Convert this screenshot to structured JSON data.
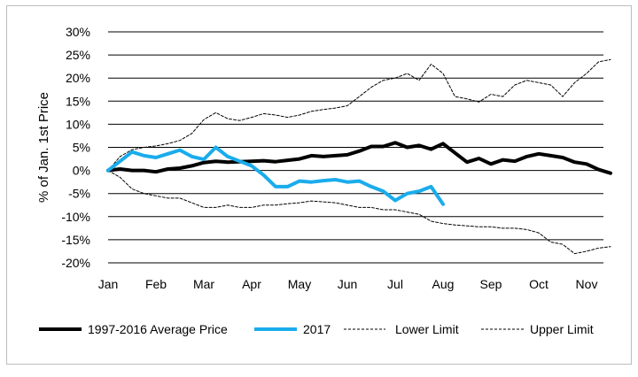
{
  "chart_data": {
    "type": "line",
    "ylabel": "% of Jan. 1st Price",
    "xlabel": "",
    "ylim": [
      -20,
      30
    ],
    "ytick_step": 5,
    "ytick_labels": [
      "30%",
      "25%",
      "20%",
      "15%",
      "10%",
      "5%",
      "0%",
      "-5%",
      "-10%",
      "-15%",
      "-20%"
    ],
    "xlim": [
      0,
      10.5
    ],
    "month_labels": [
      "Jan",
      "Feb",
      "Mar",
      "Apr",
      "May",
      "Jun",
      "Jul",
      "Aug",
      "Sep",
      "Oct",
      "Nov"
    ],
    "grid": "horizontal",
    "legend_position": "bottom",
    "series": [
      {
        "name": "1997-2016 Average Price",
        "color": "#000000",
        "style": "thick",
        "x": [
          0,
          0.25,
          0.5,
          0.75,
          1.0,
          1.25,
          1.5,
          1.75,
          2.0,
          2.25,
          2.5,
          2.75,
          3.0,
          3.25,
          3.5,
          3.75,
          4.0,
          4.25,
          4.5,
          4.75,
          5.0,
          5.25,
          5.5,
          5.75,
          6.0,
          6.25,
          6.5,
          6.75,
          7.0,
          7.25,
          7.5,
          7.75,
          8.0,
          8.25,
          8.5,
          8.75,
          9.0,
          9.25,
          9.5,
          9.75,
          10.0,
          10.25,
          10.5
        ],
        "y": [
          0,
          0.3,
          0,
          0,
          -0.3,
          0.3,
          0.5,
          1.0,
          1.7,
          2.0,
          1.8,
          1.9,
          2.0,
          2.1,
          1.9,
          2.2,
          2.5,
          3.2,
          3.0,
          3.2,
          3.4,
          4.2,
          5.2,
          5.2,
          6.0,
          5.0,
          5.4,
          4.6,
          5.8,
          3.8,
          1.8,
          2.6,
          1.4,
          2.3,
          2.0,
          3.0,
          3.6,
          3.2,
          2.8,
          1.8,
          1.4,
          0.2,
          -0.6
        ]
      },
      {
        "name": "2017",
        "color": "#1aacec",
        "style": "thick",
        "x": [
          0,
          0.25,
          0.5,
          0.75,
          1.0,
          1.25,
          1.5,
          1.75,
          2.0,
          2.25,
          2.5,
          2.75,
          3.0,
          3.25,
          3.5,
          3.75,
          4.0,
          4.25,
          4.5,
          4.75,
          5.0,
          5.25,
          5.5,
          5.75,
          6.0,
          6.25,
          6.5,
          6.75,
          7.0
        ],
        "y": [
          0,
          2,
          4,
          3.2,
          2.8,
          3.6,
          4.4,
          3.0,
          2.4,
          5.0,
          3.0,
          2.0,
          1.0,
          -1.0,
          -3.5,
          -3.5,
          -2.3,
          -2.5,
          -2.2,
          -2.0,
          -2.5,
          -2.3,
          -3.5,
          -4.5,
          -6.5,
          -5.0,
          -4.5,
          -3.5,
          -7.3
        ]
      },
      {
        "name": "Lower Limit",
        "color": "#000000",
        "style": "dashed",
        "x": [
          0,
          0.25,
          0.5,
          0.75,
          1.0,
          1.25,
          1.5,
          1.75,
          2.0,
          2.25,
          2.5,
          2.75,
          3.0,
          3.25,
          3.5,
          3.75,
          4.0,
          4.25,
          4.5,
          4.75,
          5.0,
          5.25,
          5.5,
          5.75,
          6.0,
          6.25,
          6.5,
          6.75,
          7.0,
          7.25,
          7.5,
          7.75,
          8.0,
          8.25,
          8.5,
          8.75,
          9.0,
          9.25,
          9.5,
          9.75,
          10.0,
          10.25,
          10.5
        ],
        "y": [
          0,
          -1.5,
          -4,
          -5,
          -5.5,
          -6,
          -6,
          -7,
          -8,
          -8,
          -7.5,
          -8,
          -8,
          -7.5,
          -7.5,
          -7.2,
          -7.0,
          -6.6,
          -6.8,
          -7.0,
          -7.5,
          -8.0,
          -8.0,
          -8.5,
          -8.5,
          -9.0,
          -9.5,
          -11.0,
          -11.5,
          -11.8,
          -12.0,
          -12.2,
          -12.2,
          -12.5,
          -12.5,
          -12.8,
          -13.5,
          -15.5,
          -16.0,
          -18.0,
          -17.5,
          -16.8,
          -16.5
        ]
      },
      {
        "name": "Upper Limit",
        "color": "#000000",
        "style": "dashed",
        "x": [
          0,
          0.25,
          0.5,
          0.75,
          1.0,
          1.25,
          1.5,
          1.75,
          2.0,
          2.25,
          2.5,
          2.75,
          3.0,
          3.25,
          3.5,
          3.75,
          4.0,
          4.25,
          4.5,
          4.75,
          5.0,
          5.25,
          5.5,
          5.75,
          6.0,
          6.25,
          6.5,
          6.75,
          7.0,
          7.25,
          7.5,
          7.75,
          8.0,
          8.25,
          8.5,
          8.75,
          9.0,
          9.25,
          9.5,
          9.75,
          10.0,
          10.25,
          10.5
        ],
        "y": [
          0,
          3,
          4.5,
          5,
          5.3,
          5.8,
          6.5,
          8.0,
          11.0,
          12.5,
          11.2,
          10.8,
          11.5,
          12.3,
          12.0,
          11.5,
          12.0,
          12.8,
          13.2,
          13.5,
          14.0,
          16.0,
          18.0,
          19.5,
          20.0,
          21.0,
          19.5,
          23.0,
          21.0,
          16.0,
          15.5,
          14.8,
          16.5,
          16.0,
          18.5,
          19.5,
          19.0,
          18.5,
          16.0,
          19.0,
          21.0,
          23.5,
          24.0
        ]
      }
    ]
  }
}
